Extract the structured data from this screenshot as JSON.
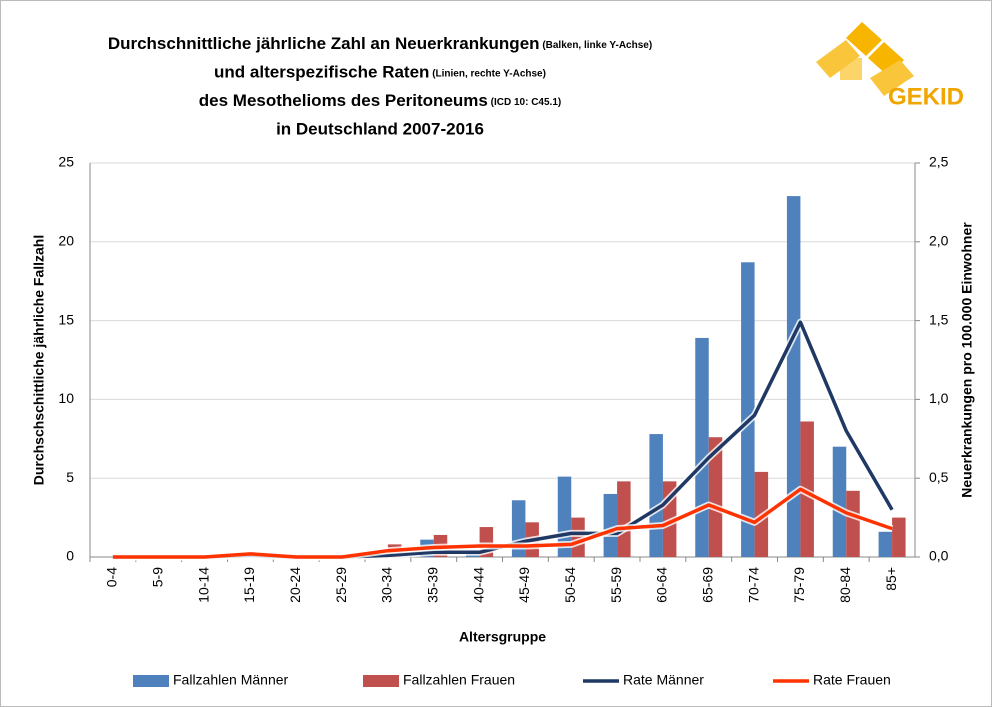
{
  "chart_data": {
    "type": "bar-line",
    "title_lines": [
      {
        "text": "Durchschnittliche jährliche Zahl an Neuerkrankungen",
        "note": "(Balken, linke Y-Achse)"
      },
      {
        "text": "und alterspezifische Raten",
        "note": "(Linien, rechte Y-Achse)"
      },
      {
        "text": "des Mesothelioms des Peritoneums",
        "note": "(ICD 10: C45.1)"
      },
      {
        "text": "in Deutschland 2007-2016",
        "note": null
      }
    ],
    "logo_text": "GEKID",
    "x_label": "Altersgruppe",
    "y_label": "Durchschschittliche jährliche Fallzahl",
    "y2_label": "Neuerkrankungen pro 100.000 Einwohner",
    "categories": [
      "0-4",
      "5-9",
      "10-14",
      "15-19",
      "20-24",
      "25-29",
      "30-34",
      "35-39",
      "40-44",
      "45-49",
      "50-54",
      "55-59",
      "60-64",
      "65-69",
      "70-74",
      "75-79",
      "80-84",
      "85+"
    ],
    "series": [
      {
        "name": "Fallzahlen Männer",
        "kind": "bar",
        "color": "#4f81bd",
        "values": [
          0,
          0,
          0,
          0,
          0,
          0,
          0.2,
          1.1,
          0.3,
          3.6,
          5.1,
          4.0,
          7.8,
          13.9,
          18.7,
          22.9,
          7.0,
          1.6
        ]
      },
      {
        "name": "Fallzahlen Frauen",
        "kind": "bar",
        "color": "#c0504d",
        "values": [
          0,
          0,
          0,
          0,
          0,
          0,
          0.8,
          1.4,
          1.9,
          2.2,
          2.5,
          4.8,
          4.8,
          7.6,
          5.4,
          8.6,
          4.2,
          2.5
        ]
      },
      {
        "name": "Rate Männer",
        "kind": "line",
        "axis": "y2",
        "color": "#1f3864",
        "values": [
          0,
          0,
          0,
          0.01,
          0,
          0,
          0.01,
          0.03,
          0.03,
          0.1,
          0.15,
          0.15,
          0.33,
          0.63,
          0.9,
          1.49,
          0.8,
          0.3
        ]
      },
      {
        "name": "Rate Frauen",
        "kind": "line",
        "axis": "y2",
        "color": "#ff3300",
        "values": [
          0,
          0,
          0,
          0.02,
          0,
          0,
          0.04,
          0.06,
          0.07,
          0.07,
          0.08,
          0.18,
          0.2,
          0.33,
          0.22,
          0.43,
          0.28,
          0.18
        ]
      }
    ],
    "ylim": [
      0,
      25
    ],
    "yticks": [
      0,
      5,
      10,
      15,
      20,
      25
    ],
    "y2lim": [
      0,
      2.5
    ],
    "y2ticks": [
      {
        "value": 0,
        "label": "0,0"
      },
      {
        "value": 0.5,
        "label": "0,5"
      },
      {
        "value": 1,
        "label": "1,0"
      },
      {
        "value": 1.5,
        "label": "1,5"
      },
      {
        "value": 2,
        "label": "2,0"
      },
      {
        "value": 2.5,
        "label": "2,5"
      }
    ],
    "grid": true,
    "legend": "bottom"
  }
}
